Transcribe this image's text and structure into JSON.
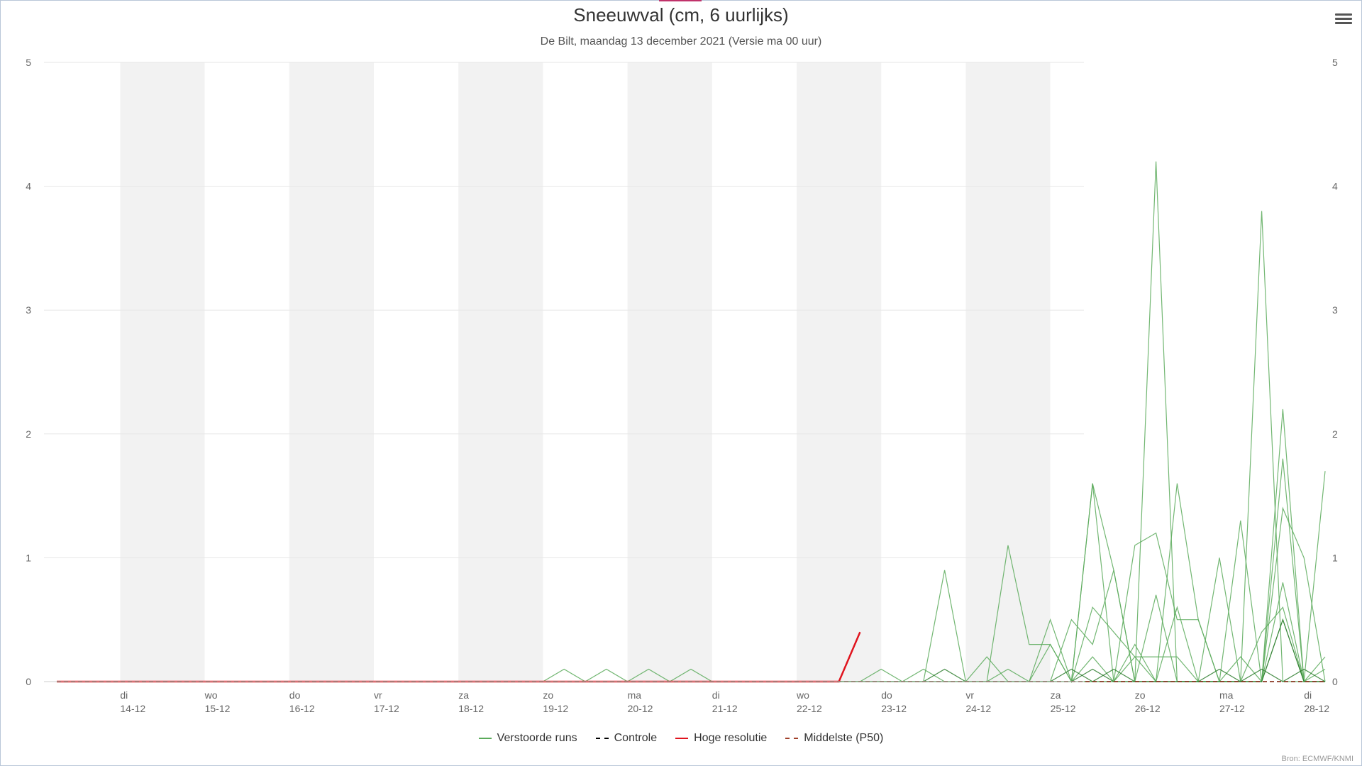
{
  "chart_data": {
    "type": "line",
    "title": "Sneeuwval (cm, 6 uurlijks)",
    "subtitle": "De Bilt, maandag 13 december 2021 (Versie ma 00 uur)",
    "source": "Bron: ECMWF/KNMI",
    "ylim": [
      0,
      5
    ],
    "yticks": [
      0,
      1,
      2,
      3,
      4,
      5
    ],
    "x_start": "2021-12-13 06:00",
    "x_step_hours": 6,
    "grid": true,
    "legend_position": "bottom-center",
    "x_labels": [
      {
        "day": "di",
        "date": "14-12"
      },
      {
        "day": "wo",
        "date": "15-12"
      },
      {
        "day": "do",
        "date": "16-12"
      },
      {
        "day": "vr",
        "date": "17-12"
      },
      {
        "day": "za",
        "date": "18-12"
      },
      {
        "day": "zo",
        "date": "19-12"
      },
      {
        "day": "ma",
        "date": "20-12"
      },
      {
        "day": "di",
        "date": "21-12"
      },
      {
        "day": "wo",
        "date": "22-12"
      },
      {
        "day": "do",
        "date": "23-12"
      },
      {
        "day": "vr",
        "date": "24-12"
      },
      {
        "day": "za",
        "date": "25-12"
      },
      {
        "day": "zo",
        "date": "26-12"
      },
      {
        "day": "ma",
        "date": "27-12"
      },
      {
        "day": "di",
        "date": "28-12"
      }
    ],
    "legend": [
      {
        "name": "Verstoorde runs",
        "color": "#5aaa5a",
        "dash": false
      },
      {
        "name": "Controle",
        "color": "#000000",
        "dash": true
      },
      {
        "name": "Hoge resolutie",
        "color": "#e0141e",
        "dash": false
      },
      {
        "name": "Middelste (P50)",
        "color": "#a0402a",
        "dash": true
      }
    ],
    "series": [
      {
        "name": "Hoge resolutie",
        "color": "#e0141e",
        "width": 2.5,
        "values": [
          0,
          0,
          0,
          0,
          0,
          0,
          0,
          0,
          0,
          0,
          0,
          0,
          0,
          0,
          0,
          0,
          0,
          0,
          0,
          0,
          0,
          0,
          0,
          0,
          0,
          0,
          0,
          0,
          0,
          0,
          0,
          0,
          0,
          0,
          0,
          0,
          0,
          0,
          0.4
        ]
      },
      {
        "name": "Controle",
        "color": "#000000",
        "width": 1.5,
        "dash": true,
        "values": [
          0,
          0,
          0,
          0,
          0,
          0,
          0,
          0,
          0,
          0,
          0,
          0,
          0,
          0,
          0,
          0,
          0,
          0,
          0,
          0,
          0,
          0,
          0,
          0,
          0,
          0,
          0,
          0,
          0,
          0,
          0,
          0,
          0,
          0,
          0,
          0,
          0,
          0,
          0,
          0,
          0,
          0,
          0,
          0,
          0,
          0,
          0,
          0,
          0,
          0,
          0,
          0,
          0,
          0,
          0,
          0,
          0,
          0,
          0,
          0,
          0
        ]
      },
      {
        "name": "Middelste (P50)",
        "color": "#a0402a",
        "width": 1.5,
        "dash": true,
        "values": [
          0,
          0,
          0,
          0,
          0,
          0,
          0,
          0,
          0,
          0,
          0,
          0,
          0,
          0,
          0,
          0,
          0,
          0,
          0,
          0,
          0,
          0,
          0,
          0,
          0,
          0,
          0,
          0,
          0,
          0,
          0,
          0,
          0,
          0,
          0,
          0,
          0,
          0,
          0,
          0,
          0,
          0,
          0,
          0,
          0,
          0,
          0,
          0,
          0,
          0,
          0,
          0,
          0,
          0,
          0,
          0,
          0,
          0,
          0,
          0,
          0
        ]
      }
    ],
    "ensemble": [
      {
        "color": "#5aaa5a",
        "values": [
          0,
          0,
          0,
          0,
          0,
          0,
          0,
          0,
          0,
          0,
          0,
          0,
          0,
          0,
          0,
          0,
          0,
          0,
          0,
          0,
          0,
          0,
          0,
          0,
          0,
          0,
          0,
          0,
          0,
          0,
          0,
          0,
          0,
          0,
          0,
          0,
          0,
          0,
          0,
          0,
          0,
          0,
          0,
          0,
          0,
          0,
          0,
          0,
          0,
          0,
          0,
          0,
          4.2,
          0,
          0,
          0,
          0,
          3.8,
          0,
          0,
          0
        ]
      },
      {
        "color": "#5aaa5a",
        "values": [
          0,
          0,
          0,
          0,
          0,
          0,
          0,
          0,
          0,
          0,
          0,
          0,
          0,
          0,
          0,
          0,
          0,
          0,
          0,
          0,
          0,
          0,
          0,
          0,
          0.1,
          0,
          0,
          0,
          0,
          0,
          0,
          0,
          0,
          0,
          0,
          0,
          0,
          0,
          0,
          0,
          0,
          0,
          0.9,
          0,
          0,
          0,
          0,
          0,
          0,
          1.6,
          0,
          1.1,
          1.2,
          0.5,
          0.5,
          0,
          0,
          0,
          2.2,
          0,
          0
        ]
      },
      {
        "color": "#5aaa5a",
        "values": [
          0,
          0,
          0,
          0,
          0,
          0,
          0,
          0,
          0,
          0,
          0,
          0,
          0,
          0,
          0,
          0,
          0,
          0,
          0,
          0,
          0,
          0,
          0,
          0,
          0,
          0,
          0.1,
          0,
          0.1,
          0,
          0.1,
          0,
          0,
          0,
          0,
          0,
          0,
          0,
          0,
          0,
          0,
          0,
          0,
          0,
          0,
          1.1,
          0.3,
          0.3,
          0,
          1.6,
          0.9,
          0,
          0,
          1.6,
          0.5,
          0,
          0,
          0,
          1.8,
          0,
          1.7
        ]
      },
      {
        "color": "#5aaa5a",
        "values": [
          0,
          0,
          0,
          0,
          0,
          0,
          0,
          0,
          0,
          0,
          0,
          0,
          0,
          0,
          0,
          0,
          0,
          0,
          0,
          0,
          0,
          0,
          0,
          0,
          0,
          0,
          0,
          0,
          0,
          0,
          0,
          0,
          0,
          0,
          0,
          0,
          0,
          0,
          0,
          0.1,
          0,
          0,
          0,
          0,
          0,
          0.1,
          0,
          0.5,
          0,
          0.6,
          0.4,
          0.2,
          0.2,
          0.2,
          0,
          1.0,
          0,
          0,
          1.4,
          1.0,
          0
        ]
      },
      {
        "color": "#5aaa5a",
        "values": [
          0,
          0,
          0,
          0,
          0,
          0,
          0,
          0,
          0,
          0,
          0,
          0,
          0,
          0,
          0,
          0,
          0,
          0,
          0,
          0,
          0,
          0,
          0,
          0,
          0,
          0,
          0,
          0,
          0,
          0,
          0,
          0,
          0,
          0,
          0,
          0,
          0,
          0,
          0,
          0,
          0,
          0.1,
          0,
          0,
          0.2,
          0,
          0,
          0,
          0.5,
          0.3,
          0.9,
          0,
          0.7,
          0,
          0,
          0,
          1.3,
          0,
          0.8,
          0,
          0.2
        ]
      },
      {
        "color": "#5aaa5a",
        "values": [
          0,
          0,
          0,
          0,
          0,
          0,
          0,
          0,
          0,
          0,
          0,
          0,
          0,
          0,
          0,
          0,
          0,
          0,
          0,
          0,
          0,
          0,
          0,
          0,
          0,
          0,
          0,
          0,
          0,
          0,
          0,
          0,
          0,
          0,
          0,
          0,
          0,
          0,
          0,
          0,
          0,
          0,
          0,
          0,
          0,
          0,
          0,
          0.3,
          0,
          0.2,
          0,
          0.3,
          0,
          0.6,
          0,
          0,
          0,
          0.4,
          0.6,
          0,
          0
        ]
      },
      {
        "color": "#5aaa5a",
        "values": [
          0,
          0,
          0,
          0,
          0,
          0,
          0,
          0,
          0,
          0,
          0,
          0,
          0,
          0,
          0,
          0,
          0,
          0,
          0,
          0,
          0,
          0,
          0,
          0,
          0,
          0,
          0,
          0,
          0,
          0,
          0,
          0,
          0,
          0,
          0,
          0,
          0,
          0,
          0,
          0,
          0,
          0,
          0,
          0,
          0,
          0,
          0,
          0,
          0,
          0,
          0,
          0.2,
          0,
          0,
          0,
          0,
          0.2,
          0,
          0.5,
          0,
          0.1
        ]
      },
      {
        "color": "#2d7d2d",
        "values": [
          0,
          0,
          0,
          0,
          0,
          0,
          0,
          0,
          0,
          0,
          0,
          0,
          0,
          0,
          0,
          0,
          0,
          0,
          0,
          0,
          0,
          0,
          0,
          0,
          0,
          0,
          0,
          0,
          0,
          0,
          0,
          0,
          0,
          0,
          0,
          0,
          0,
          0,
          0,
          0,
          0,
          0,
          0.1,
          0,
          0,
          0,
          0,
          0,
          0.1,
          0,
          0.1,
          0,
          0,
          0,
          0,
          0.1,
          0,
          0,
          0.5,
          0,
          0
        ]
      },
      {
        "color": "#2d7d2d",
        "values": [
          0,
          0,
          0,
          0,
          0,
          0,
          0,
          0,
          0,
          0,
          0,
          0,
          0,
          0,
          0,
          0,
          0,
          0,
          0,
          0,
          0,
          0,
          0,
          0,
          0,
          0,
          0,
          0,
          0,
          0,
          0,
          0,
          0,
          0,
          0,
          0,
          0,
          0,
          0,
          0,
          0,
          0,
          0,
          0,
          0,
          0,
          0,
          0,
          0,
          0.1,
          0,
          0,
          0,
          0,
          0,
          0,
          0,
          0.1,
          0,
          0.1,
          0
        ]
      }
    ]
  }
}
